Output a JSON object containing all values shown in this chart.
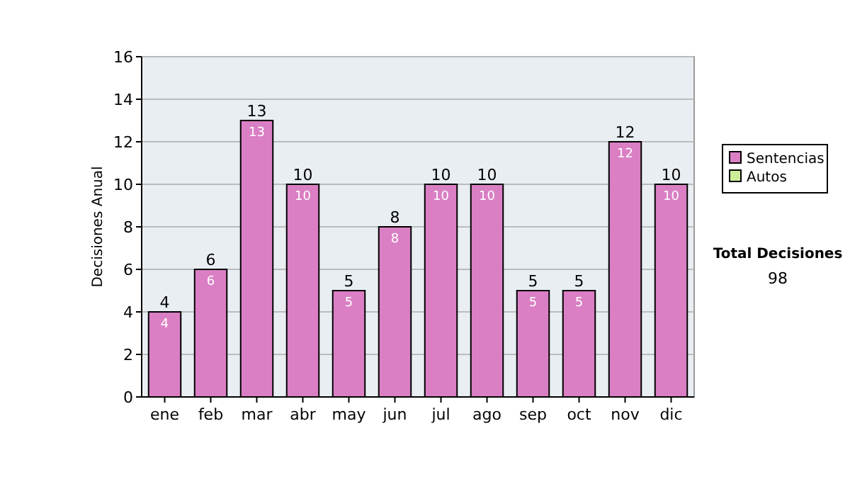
{
  "chart_data": {
    "type": "bar",
    "stacked": true,
    "ylabel": "Decisiones Anual",
    "categories": [
      "ene",
      "feb",
      "mar",
      "abr",
      "may",
      "jun",
      "jul",
      "ago",
      "sep",
      "oct",
      "nov",
      "dic"
    ],
    "series": [
      {
        "name": "Sentencias",
        "color": "#da7fc4",
        "values": [
          4,
          6,
          13,
          10,
          5,
          8,
          10,
          10,
          5,
          5,
          12,
          10
        ],
        "value_labels": [
          "4",
          "6",
          "13",
          "10",
          "5",
          "8",
          "10",
          "10",
          "5",
          "5",
          "12",
          "10"
        ]
      },
      {
        "name": "Autos",
        "color": "#ccee99",
        "values": [
          0,
          0,
          0,
          0,
          0,
          0,
          0,
          0,
          0,
          0,
          0,
          0
        ]
      }
    ],
    "totals": [
      "4",
      "6",
      "13",
      "10",
      "5",
      "8",
      "10",
      "10",
      "5",
      "5",
      "12",
      "10"
    ],
    "ylim": [
      0,
      16
    ],
    "yticks": [
      0,
      2,
      4,
      6,
      8,
      10,
      12,
      14,
      16
    ],
    "grid": "y",
    "legend": "right",
    "annotations": [
      "Total Decisiones",
      "98"
    ]
  }
}
